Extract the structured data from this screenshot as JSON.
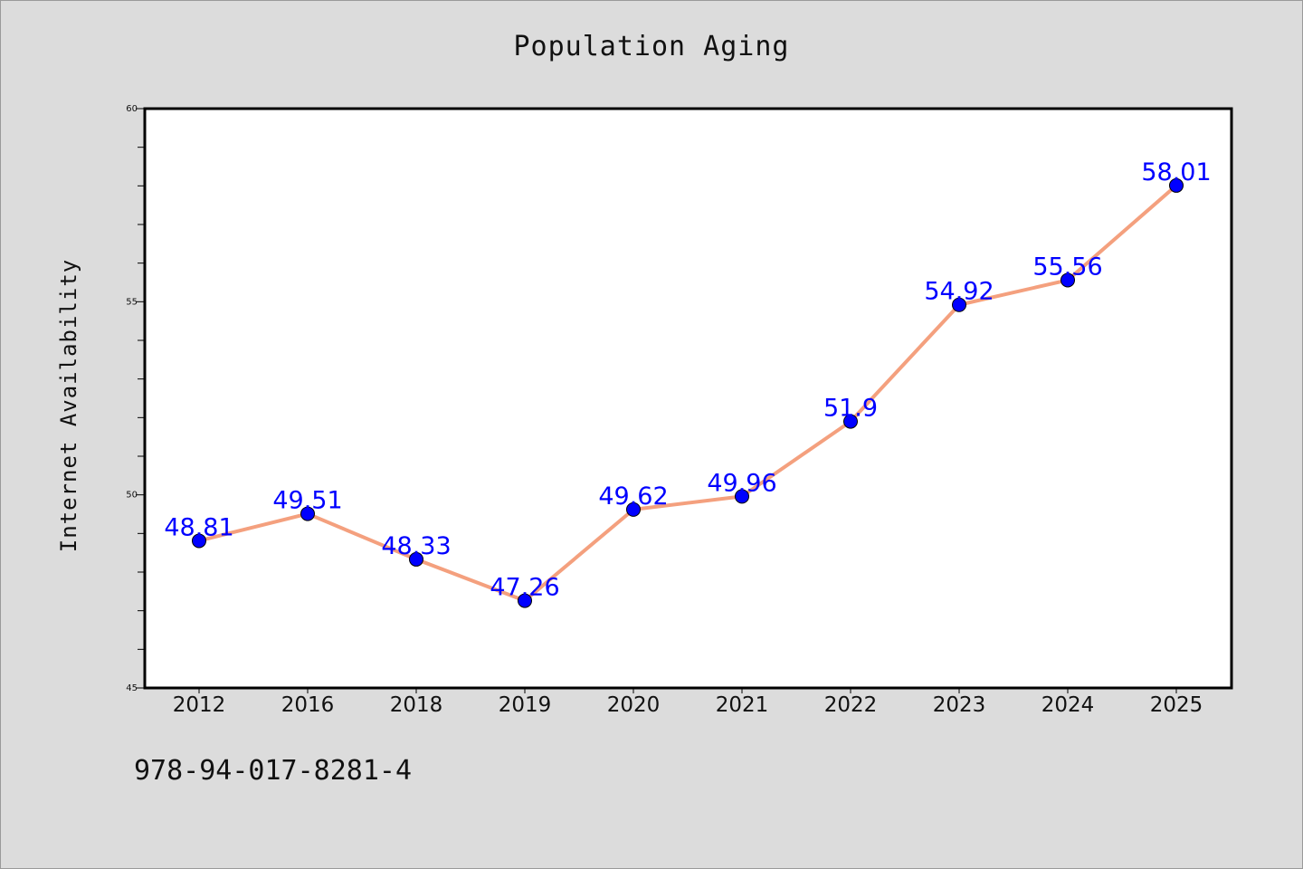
{
  "chart_data": {
    "type": "line",
    "title": "Population Aging",
    "xlabel": "",
    "ylabel": "Internet Availability",
    "categories": [
      "2012",
      "2016",
      "2018",
      "2019",
      "2020",
      "2021",
      "2022",
      "2023",
      "2024",
      "2025"
    ],
    "series": [
      {
        "values": [
          48.81,
          49.51,
          48.33,
          47.26,
          49.62,
          49.96,
          51.9,
          54.92,
          55.56,
          58.01
        ],
        "labels": [
          "48.81",
          "49.51",
          "48.33",
          "47.26",
          "49.62",
          "49.96",
          "51.9",
          "54.92",
          "55.56",
          "58.01"
        ]
      }
    ],
    "ylim": [
      45,
      60
    ],
    "yticks": [
      "45",
      "50",
      "55",
      "60"
    ],
    "grid": false,
    "colors": {
      "line": "#f4a07e",
      "marker": "#0000ff",
      "data_label": "#0000ff",
      "background": "#dcdcdc",
      "plot_background": "#ffffff"
    }
  },
  "footer": {
    "code": "978-94-017-8281-4"
  }
}
